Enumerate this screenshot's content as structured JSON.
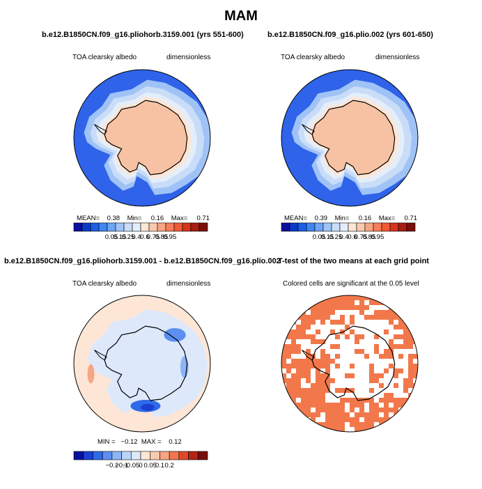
{
  "page": {
    "season_title": "MAM"
  },
  "colors": {
    "seq_palette": [
      "#08109c",
      "#0a3ac8",
      "#1a5fe6",
      "#3f86f0",
      "#6fa5f4",
      "#9fc3f6",
      "#c9dcf8",
      "#e4eefb",
      "#fde6d6",
      "#fbc9ae",
      "#f8a583",
      "#f57f58",
      "#ef5a33",
      "#d6341c",
      "#a61d13",
      "#7a0e0b"
    ],
    "div_palette": [
      "#08109c",
      "#1a3fd2",
      "#2f6ae8",
      "#5c8ff0",
      "#8db4f5",
      "#bcd4f8",
      "#dde9fb",
      "#fde6d6",
      "#fbcab0",
      "#f7a584",
      "#f1774f",
      "#de4a28",
      "#b32414",
      "#7a0e0b"
    ],
    "ocean_mean": "#2e63ea",
    "land_mean": "#f7c2a4",
    "diff_background": "#d8e6fa",
    "ttest_significant": "#f2784b"
  },
  "panels": {
    "top_left": {
      "title": "b.e12.B1850CN.f09_g16.pliohorb.3159.001 (yrs 551-600)",
      "left_label": "TOA clearsky albedo",
      "right_label": "dimensionless",
      "stats": {
        "mean_label": "MEAN=",
        "mean": "0.38",
        "min_label": "Min=",
        "min": "0.16",
        "max_label": "Max=",
        "max": "0.71"
      }
    },
    "top_right": {
      "title": "b.e12.B1850CN.f09_g16.plio.002 (yrs 601-650)",
      "left_label": "TOA clearsky albedo",
      "right_label": "dimensionless",
      "stats": {
        "mean_label": "MEAN=",
        "mean": "0.39",
        "min_label": "Min=",
        "min": "0.16",
        "max_label": "Max=",
        "max": "0.71"
      }
    },
    "bottom_left": {
      "title": "b.e12.B1850CN.f09_g16.pliohorb.3159.001 - b.e12.B1850CN.f09_g16.plio.002",
      "left_label": "TOA clearsky albedo",
      "right_label": "dimensionless",
      "stats": {
        "min_label": "MIN =",
        "min": "−0.12",
        "max_label": "MAX =",
        "max": "0.12"
      }
    },
    "bottom_right": {
      "title": "T-test of the two means at each grid point",
      "label": "Colored cells are significant at the 0.05 level"
    }
  },
  "colorbars": {
    "sequential_ticks": [
      "0.05",
      "0.15",
      "0.25",
      "0.4",
      "0.6",
      "0.75",
      "0.85",
      "0.95"
    ],
    "diverging_ticks": [
      "−0.2",
      "−0.1",
      "−0.05",
      "0",
      "0.05",
      "0.1",
      "0.2"
    ]
  },
  "chart_data": [
    {
      "type": "heatmap",
      "title": "b.e12.B1850CN.f09_g16.pliohorb.3159.001 (yrs 551-600)",
      "variable": "TOA clearsky albedo",
      "units": "dimensionless",
      "projection": "south polar stereographic",
      "stats": {
        "mean": 0.38,
        "min": 0.16,
        "max": 0.71
      },
      "colorbar_levels": [
        0.05,
        0.15,
        0.25,
        0.4,
        0.6,
        0.75,
        0.85,
        0.95
      ]
    },
    {
      "type": "heatmap",
      "title": "b.e12.B1850CN.f09_g16.plio.002 (yrs 601-650)",
      "variable": "TOA clearsky albedo",
      "units": "dimensionless",
      "projection": "south polar stereographic",
      "stats": {
        "mean": 0.39,
        "min": 0.16,
        "max": 0.71
      },
      "colorbar_levels": [
        0.05,
        0.15,
        0.25,
        0.4,
        0.6,
        0.75,
        0.85,
        0.95
      ]
    },
    {
      "type": "heatmap",
      "title": "b.e12.B1850CN.f09_g16.pliohorb.3159.001 - b.e12.B1850CN.f09_g16.plio.002",
      "variable": "TOA clearsky albedo",
      "units": "dimensionless",
      "projection": "south polar stereographic",
      "stats": {
        "min": -0.12,
        "max": 0.12
      },
      "colorbar_levels": [
        -0.2,
        -0.1,
        -0.05,
        0,
        0.05,
        0.1,
        0.2
      ]
    },
    {
      "type": "heatmap",
      "title": "T-test of the two means at each grid point",
      "description": "Colored cells are significant at the 0.05 level",
      "projection": "south polar stereographic"
    }
  ]
}
